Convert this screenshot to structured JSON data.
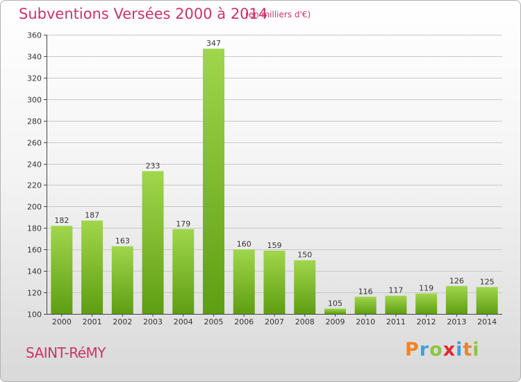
{
  "header": {
    "title": "Subventions Versées 2000 à 2014",
    "subtitle": "(en milliers d'€)"
  },
  "footer": {
    "commune": "SAINT-RéMY",
    "logo": [
      "P",
      "r",
      "o",
      "x",
      "i",
      "t",
      "i"
    ]
  },
  "colors": {
    "title": "#cc3366",
    "bar_light": "#a0d64c",
    "bar_dark": "#5e9e12",
    "grid": "#c8c8c8",
    "logo": [
      "#f58220",
      "#3da0dc",
      "#8cc63f",
      "#e8262e",
      "#3da0dc",
      "#f58220",
      "#8cc63f"
    ]
  },
  "chart_data": {
    "type": "bar",
    "title": "Subventions Versées 2000 à 2014",
    "subtitle": "(en milliers d'€)",
    "categories": [
      "2000",
      "2001",
      "2002",
      "2003",
      "2004",
      "2005",
      "2006",
      "2007",
      "2008",
      "2009",
      "2010",
      "2011",
      "2012",
      "2013",
      "2014"
    ],
    "values": [
      182,
      187,
      163,
      233,
      179,
      347,
      160,
      159,
      150,
      105,
      116,
      117,
      119,
      126,
      125
    ],
    "ylim": [
      100,
      360
    ],
    "yticks": [
      100,
      120,
      140,
      160,
      180,
      200,
      220,
      240,
      260,
      280,
      300,
      320,
      340,
      360
    ],
    "grid": true,
    "data_labels": true
  }
}
